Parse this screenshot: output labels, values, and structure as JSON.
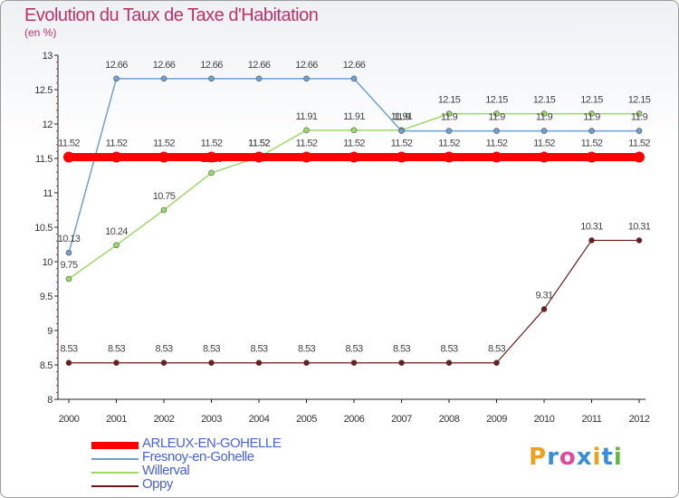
{
  "title": "Evolution du Taux de Taxe d'Habitation",
  "subtitle": "(en %)",
  "logo": {
    "letters": [
      "P",
      "r",
      "o",
      "x",
      "i",
      "t",
      "i"
    ],
    "colors": [
      "#f0a020",
      "#3a90d8",
      "#e04a9a",
      "#3a90d8",
      "#f0a020",
      "#3a90d8",
      "#60b840"
    ]
  },
  "chart_data": {
    "type": "line",
    "title": "Evolution du Taux de Taxe d'Habitation",
    "ylabel": "(en %)",
    "xlabel": "",
    "ylim": [
      8,
      13
    ],
    "yticks": [
      "8",
      "8.5",
      "9",
      "9.5",
      "10",
      "10.5",
      "11",
      "11.5",
      "12",
      "12.5",
      "13"
    ],
    "x": [
      "2000",
      "2001",
      "2002",
      "2003",
      "2004",
      "2005",
      "2006",
      "2007",
      "2008",
      "2009",
      "2010",
      "2011",
      "2012"
    ],
    "grid": false,
    "legend_position": "bottom-left",
    "series": [
      {
        "name": "Oppy",
        "color": "#6e1a1a",
        "width": 1.2,
        "values": [
          8.53,
          8.53,
          8.53,
          8.53,
          8.53,
          8.53,
          8.53,
          8.53,
          8.53,
          8.53,
          9.31,
          10.31,
          10.31
        ],
        "labels": [
          "8.53",
          "8.53",
          "8.53",
          "8.53",
          "8.53",
          "8.53",
          "8.53",
          "8.53",
          "8.53",
          "8.53",
          "9.31",
          "10.31",
          "10.31"
        ]
      },
      {
        "name": "Willerval",
        "color": "#9cd96a",
        "width": 1.5,
        "values": [
          9.75,
          10.24,
          10.75,
          11.29,
          11.52,
          11.91,
          11.91,
          11.91,
          12.15,
          12.15,
          12.15,
          12.15,
          12.15
        ],
        "labels": [
          "9.75",
          "10.24",
          "10.75",
          "11.29",
          "11.52",
          "11.91",
          "11.91",
          "11.91",
          "12.15",
          "12.15",
          "12.15",
          "12.15",
          "12.15"
        ]
      },
      {
        "name": "Fresnoy-en-Gohelle",
        "color": "#6ea0d2",
        "width": 1.5,
        "values": [
          10.13,
          12.66,
          12.66,
          12.66,
          12.66,
          12.66,
          12.66,
          11.9,
          11.9,
          11.9,
          11.9,
          11.9,
          11.9
        ],
        "labels": [
          "10.13",
          "12.66",
          "12.66",
          "12.66",
          "12.66",
          "12.66",
          "12.66",
          "11.9",
          "11.9",
          "11.9",
          "11.9",
          "11.9",
          "11.9"
        ]
      },
      {
        "name": "ARLEUX-EN-GOHELLE",
        "color": "#ff0000",
        "width": 9,
        "values": [
          11.52,
          11.52,
          11.52,
          11.52,
          11.52,
          11.52,
          11.52,
          11.52,
          11.52,
          11.52,
          11.52,
          11.52,
          11.52
        ],
        "labels": [
          "11.52",
          "11.52",
          "11.52",
          "11.52",
          "11.52",
          "11.52",
          "11.52",
          "11.52",
          "11.52",
          "11.52",
          "11.52",
          "11.52",
          "11.52"
        ]
      }
    ],
    "legend": [
      "ARLEUX-EN-GOHELLE",
      "Fresnoy-en-Gohelle",
      "Willerval",
      "Oppy"
    ]
  }
}
